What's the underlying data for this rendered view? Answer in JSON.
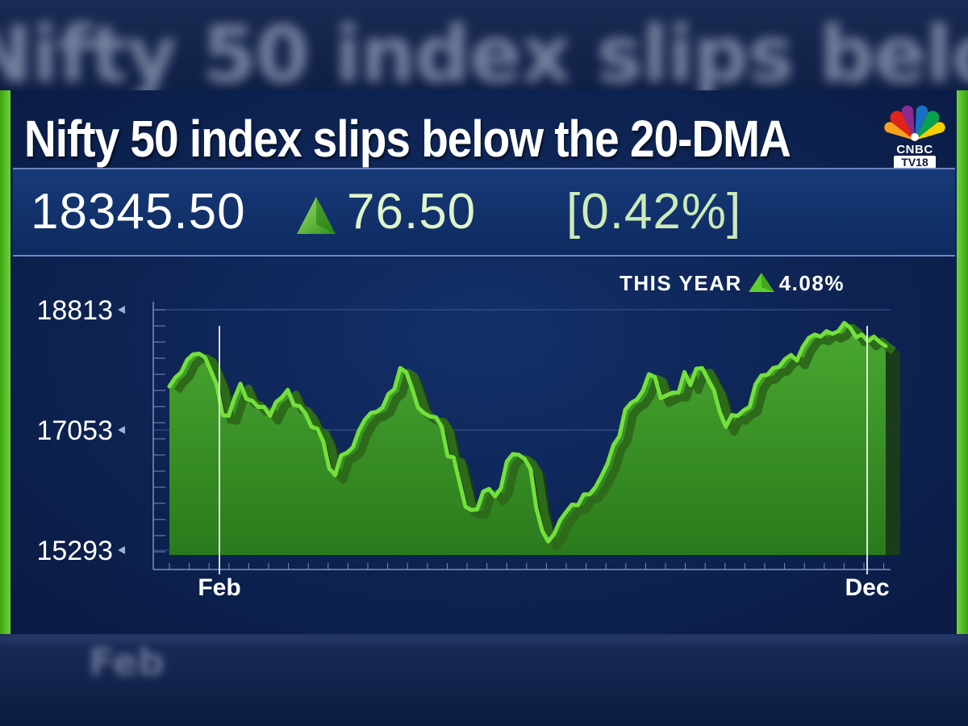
{
  "headline": "Nifty 50 index slips below the 20-DMA",
  "logo": {
    "brand": "CNBC",
    "sub": "TV18"
  },
  "quote": {
    "value": "18345.50",
    "change": "76.50",
    "change_pct": "[0.42%]",
    "direction_icon": "up-triangle-icon"
  },
  "this_year": {
    "label": "THIS YEAR",
    "value": "4.08%"
  },
  "colors": {
    "accent_green": "#5fd12a",
    "area_green": "#3f9e28",
    "background": "#0d2352"
  },
  "chart_data": {
    "type": "area",
    "title": "",
    "xlabel": "",
    "ylabel": "",
    "x_tick_labels": [
      "Feb",
      "Dec"
    ],
    "y_tick_labels": [
      "15293",
      "17053",
      "18813"
    ],
    "ylim": [
      15293,
      18813
    ],
    "grid": true,
    "series": [
      {
        "values": [
          17690,
          17820,
          17900,
          18080,
          18160,
          18170,
          18120,
          17920,
          17710,
          17270,
          17260,
          17520,
          17730,
          17510,
          17480,
          17390,
          17390,
          17260,
          17460,
          17530,
          17640,
          17420,
          17400,
          17290,
          17100,
          17070,
          16880,
          16490,
          16390,
          16680,
          16720,
          16800,
          17040,
          17200,
          17300,
          17320,
          17380,
          17580,
          17650,
          17960,
          17900,
          17660,
          17380,
          17300,
          17250,
          17240,
          17100,
          16670,
          16650,
          16290,
          15930,
          15880,
          15890,
          16150,
          16190,
          16080,
          16200,
          16590,
          16700,
          16690,
          16630,
          16480,
          15900,
          15570,
          15420,
          15530,
          15730,
          15850,
          15960,
          15950,
          16110,
          16110,
          16220,
          16380,
          16560,
          16830,
          16960,
          17350,
          17450,
          17500,
          17630,
          17870,
          17830,
          17520,
          17560,
          17600,
          17600,
          17900,
          17710,
          17950,
          17960,
          17790,
          17630,
          17310,
          17100,
          17270,
          17260,
          17340,
          17390,
          17720,
          17850,
          17860,
          17960,
          17980,
          18090,
          18150,
          18070,
          18270,
          18400,
          18450,
          18420,
          18500,
          18460,
          18500,
          18620,
          18550,
          18410,
          18450,
          18350,
          18420,
          18340,
          18280
        ]
      }
    ]
  }
}
